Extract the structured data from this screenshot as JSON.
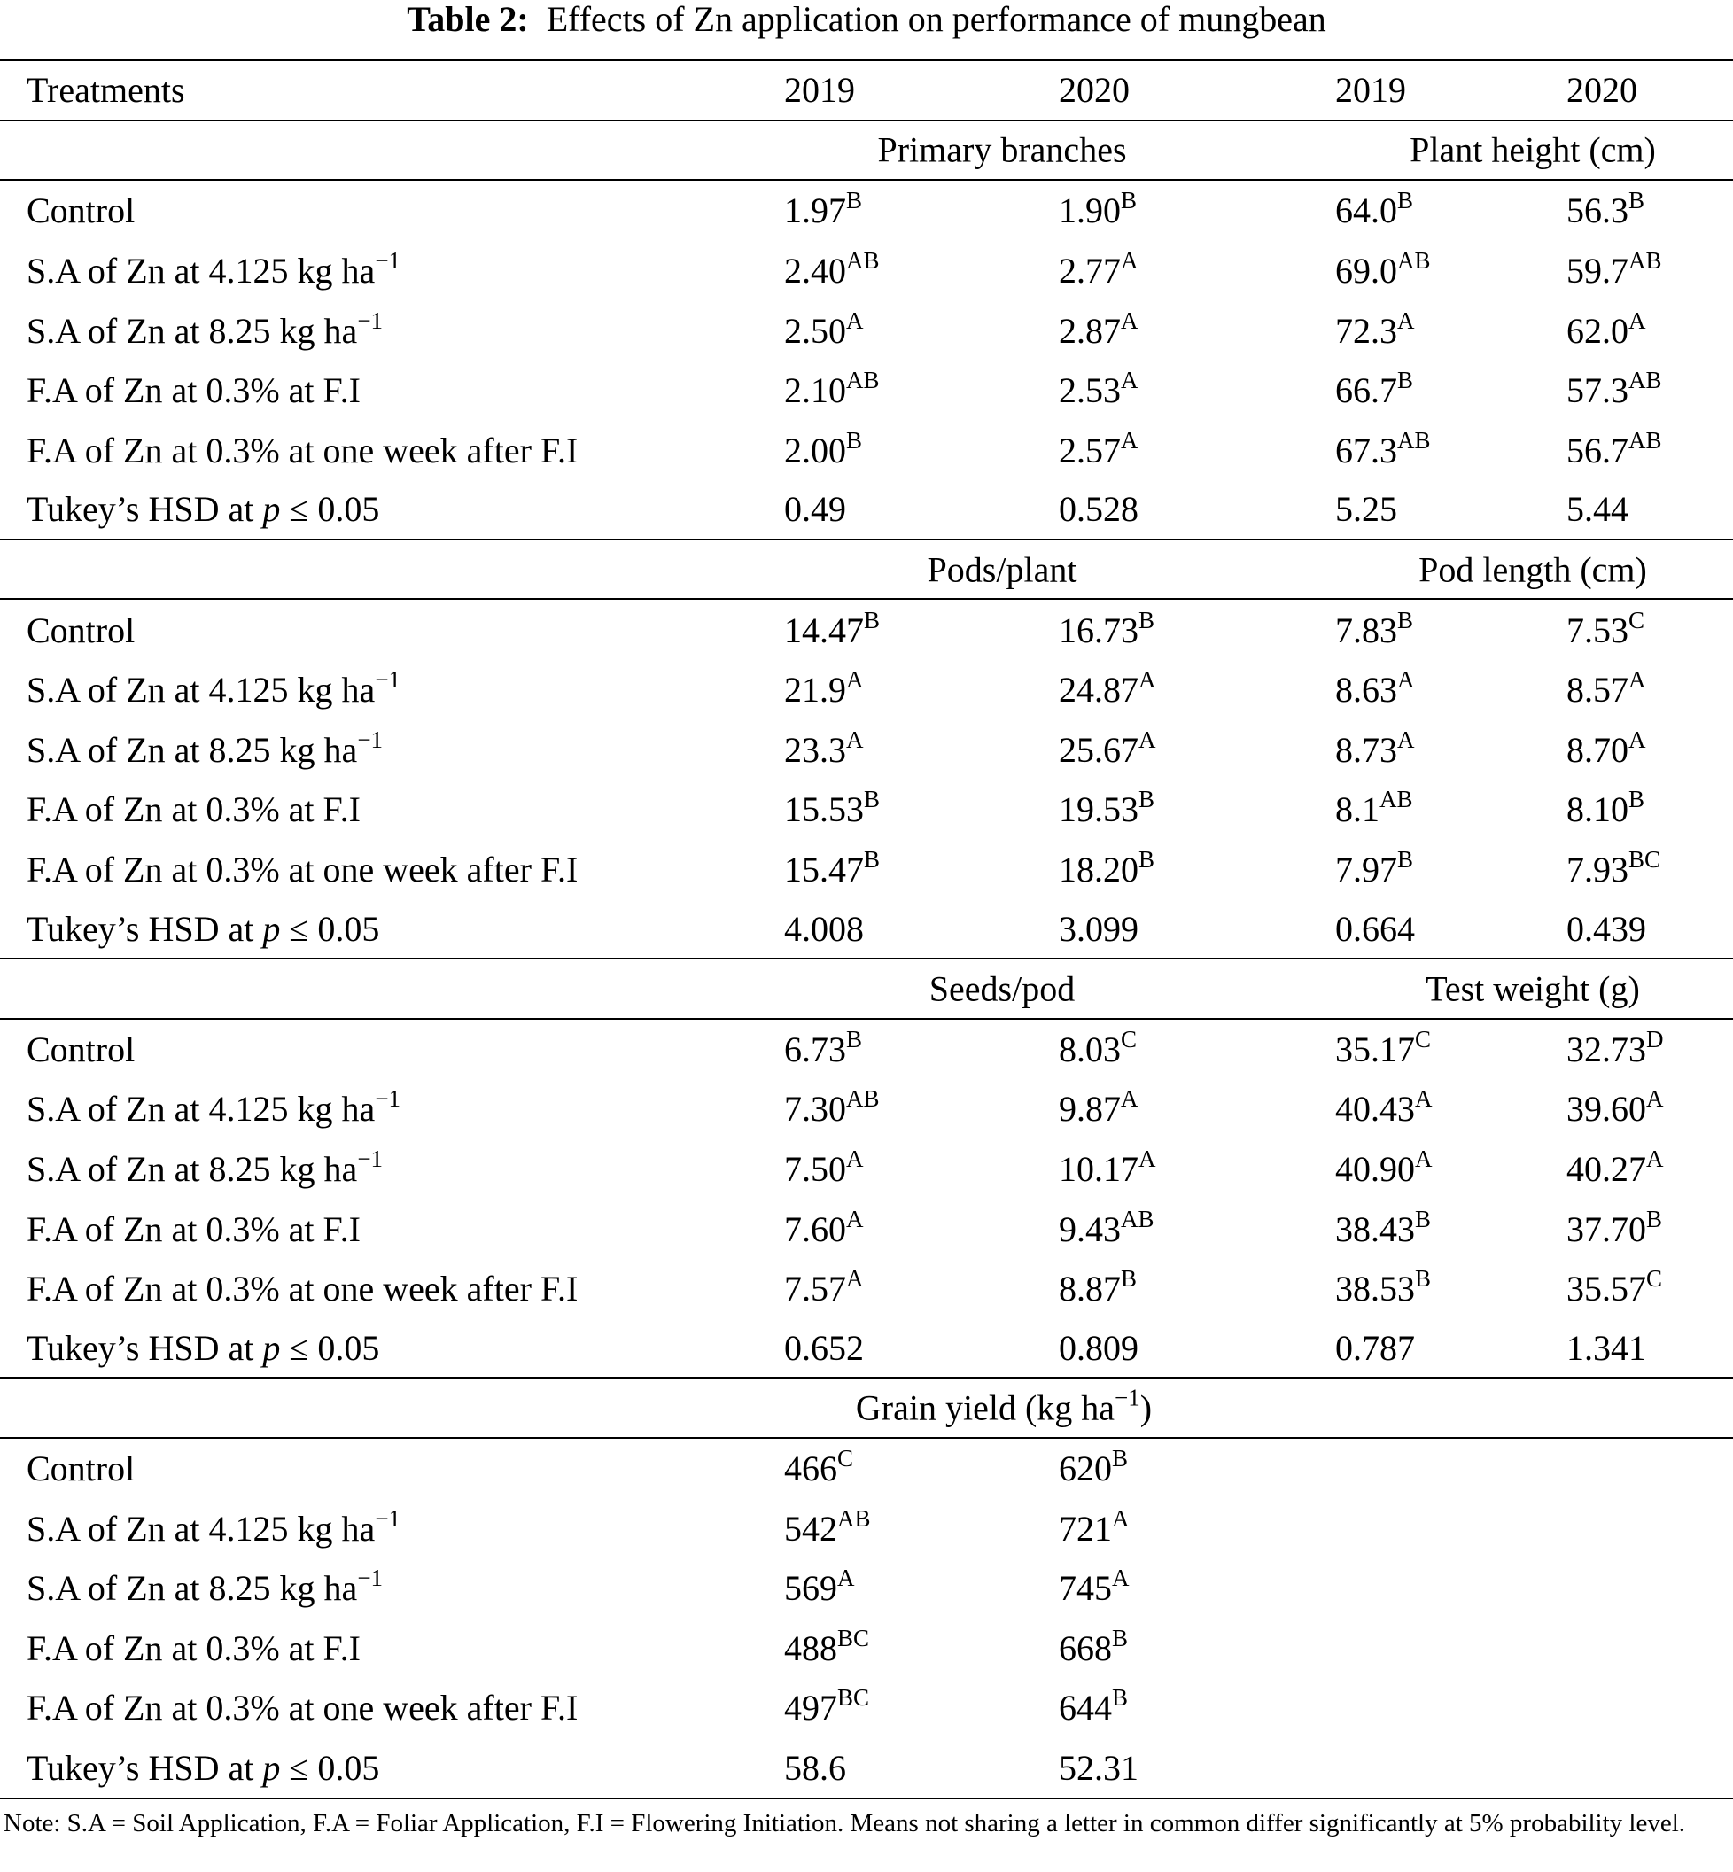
{
  "title": {
    "label": "Table 2:",
    "text": "Effects of Zn application on performance of mungbean"
  },
  "header": {
    "treatments": "Treatments",
    "years": [
      "2019",
      "2020",
      "2019",
      "2020"
    ]
  },
  "treatments": [
    {
      "pre": "Control",
      "ital": "",
      "post": "",
      "sup": ""
    },
    {
      "pre": "S.A of Zn at 4.125 kg ha",
      "ital": "",
      "post": "",
      "sup": "−1"
    },
    {
      "pre": "S.A of Zn at 8.25 kg ha",
      "ital": "",
      "post": "",
      "sup": "−1"
    },
    {
      "pre": "F.A of Zn at 0.3% at F.I",
      "ital": "",
      "post": "",
      "sup": ""
    },
    {
      "pre": "F.A of Zn at 0.3% at one week after F.I",
      "ital": "",
      "post": "",
      "sup": ""
    },
    {
      "pre": "Tukey’s HSD at ",
      "ital": "p",
      "post": " ≤ 0.05",
      "sup": ""
    }
  ],
  "sections": [
    {
      "left_title": "Primary branches",
      "right_title": "Plant height (cm)",
      "rows": [
        [
          [
            "1.97",
            "B"
          ],
          [
            "1.90",
            "B"
          ],
          [
            "64.0",
            "B"
          ],
          [
            "56.3",
            "B"
          ]
        ],
        [
          [
            "2.40",
            "AB"
          ],
          [
            "2.77",
            "A"
          ],
          [
            "69.0",
            "AB"
          ],
          [
            "59.7",
            "AB"
          ]
        ],
        [
          [
            "2.50",
            "A"
          ],
          [
            "2.87",
            "A"
          ],
          [
            "72.3",
            "A"
          ],
          [
            "62.0",
            "A"
          ]
        ],
        [
          [
            "2.10",
            "AB"
          ],
          [
            "2.53",
            "A"
          ],
          [
            "66.7",
            "B"
          ],
          [
            "57.3",
            "AB"
          ]
        ],
        [
          [
            "2.00",
            "B"
          ],
          [
            "2.57",
            "A"
          ],
          [
            "67.3",
            "AB"
          ],
          [
            "56.7",
            "AB"
          ]
        ],
        [
          [
            "0.49",
            ""
          ],
          [
            "0.528",
            ""
          ],
          [
            "5.25",
            ""
          ],
          [
            "5.44",
            ""
          ]
        ]
      ]
    },
    {
      "left_title": "Pods/plant",
      "right_title": "Pod length (cm)",
      "rows": [
        [
          [
            "14.47",
            "B"
          ],
          [
            "16.73",
            "B"
          ],
          [
            "7.83",
            "B"
          ],
          [
            "7.53",
            "C"
          ]
        ],
        [
          [
            "21.9",
            "A"
          ],
          [
            "24.87",
            "A"
          ],
          [
            "8.63",
            "A"
          ],
          [
            "8.57",
            "A"
          ]
        ],
        [
          [
            "23.3",
            "A"
          ],
          [
            "25.67",
            "A"
          ],
          [
            "8.73",
            "A"
          ],
          [
            "8.70",
            "A"
          ]
        ],
        [
          [
            "15.53",
            "B"
          ],
          [
            "19.53",
            "B"
          ],
          [
            "8.1",
            "AB"
          ],
          [
            "8.10",
            "B"
          ]
        ],
        [
          [
            "15.47",
            "B"
          ],
          [
            "18.20",
            "B"
          ],
          [
            "7.97",
            "B"
          ],
          [
            "7.93",
            "BC"
          ]
        ],
        [
          [
            "4.008",
            ""
          ],
          [
            "3.099",
            ""
          ],
          [
            "0.664",
            ""
          ],
          [
            "0.439",
            ""
          ]
        ]
      ]
    },
    {
      "left_title": "Seeds/pod",
      "right_title": "Test weight (g)",
      "rows": [
        [
          [
            "6.73",
            "B"
          ],
          [
            "8.03",
            "C"
          ],
          [
            "35.17",
            "C"
          ],
          [
            "32.73",
            "D"
          ]
        ],
        [
          [
            "7.30",
            "AB"
          ],
          [
            "9.87",
            "A"
          ],
          [
            "40.43",
            "A"
          ],
          [
            "39.60",
            "A"
          ]
        ],
        [
          [
            "7.50",
            "A"
          ],
          [
            "10.17",
            "A"
          ],
          [
            "40.90",
            "A"
          ],
          [
            "40.27",
            "A"
          ]
        ],
        [
          [
            "7.60",
            "A"
          ],
          [
            "9.43",
            "AB"
          ],
          [
            "38.43",
            "B"
          ],
          [
            "37.70",
            "B"
          ]
        ],
        [
          [
            "7.57",
            "A"
          ],
          [
            "8.87",
            "B"
          ],
          [
            "38.53",
            "B"
          ],
          [
            "35.57",
            "C"
          ]
        ],
        [
          [
            "0.652",
            ""
          ],
          [
            "0.809",
            ""
          ],
          [
            "0.787",
            ""
          ],
          [
            "1.341",
            ""
          ]
        ]
      ]
    },
    {
      "left_title": "Grain yield (kg ha",
      "left_title_sup": "−1",
      "left_title_post": ")",
      "right_title": "",
      "rows": [
        [
          [
            "466",
            "C"
          ],
          [
            "620",
            "B"
          ]
        ],
        [
          [
            "542",
            "AB"
          ],
          [
            "721",
            "A"
          ]
        ],
        [
          [
            "569",
            "A"
          ],
          [
            "745",
            "A"
          ]
        ],
        [
          [
            "488",
            "BC"
          ],
          [
            "668",
            "B"
          ]
        ],
        [
          [
            "497",
            "BC"
          ],
          [
            "644",
            "B"
          ]
        ],
        [
          [
            "58.6",
            ""
          ],
          [
            "52.31",
            ""
          ]
        ]
      ]
    }
  ],
  "note": "Note: S.A = Soil Application, F.A = Foliar Application, F.I = Flowering Initiation. Means not sharing a letter in common differ significantly at 5% probability level."
}
